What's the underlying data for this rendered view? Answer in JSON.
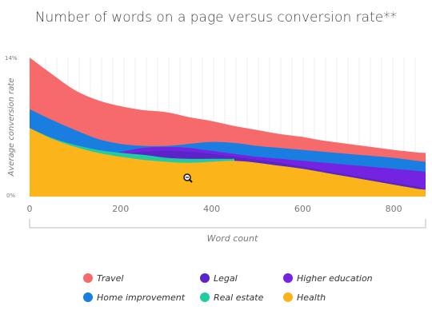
{
  "chart_data": {
    "type": "area",
    "title": "Number of words on a page versus conversion rate**",
    "xlabel": "Word count",
    "ylabel": "Average conversion rate",
    "xlim": [
      0,
      870
    ],
    "ylim": [
      0,
      14
    ],
    "x_ticks": [
      "0",
      "200",
      "400",
      "600",
      "800"
    ],
    "y_ticks": [
      "0%",
      "14%"
    ],
    "grid": "vertical",
    "legend_placement": "bottom",
    "x": [
      0,
      50,
      100,
      150,
      200,
      250,
      300,
      350,
      400,
      450,
      500,
      550,
      600,
      650,
      700,
      750,
      800,
      850,
      870
    ],
    "series": [
      {
        "name": "Travel",
        "color": "#f76a6b",
        "values": [
          14,
          12.3,
          10.7,
          9.7,
          9.1,
          8.7,
          8.5,
          8.0,
          7.6,
          7.1,
          6.7,
          6.3,
          6.0,
          5.6,
          5.3,
          5.0,
          4.7,
          4.45,
          4.4
        ]
      },
      {
        "name": "Home improvement",
        "color": "#1a7de0",
        "values": [
          8.8,
          7.7,
          6.7,
          5.8,
          5.3,
          5.1,
          5.1,
          5.3,
          5.5,
          5.4,
          5.1,
          4.9,
          4.7,
          4.5,
          4.3,
          4.1,
          3.9,
          3.6,
          3.5
        ]
      },
      {
        "name": "Higher education",
        "color": "#7423e0",
        "values": [
          null,
          null,
          null,
          4.0,
          4.5,
          4.9,
          5.0,
          4.9,
          4.6,
          4.3,
          4.0,
          3.8,
          3.6,
          3.4,
          3.2,
          3.0,
          2.8,
          2.6,
          2.5
        ]
      },
      {
        "name": "Legal",
        "color": "#5a24c8",
        "values": [
          null,
          null,
          null,
          4.1,
          4.3,
          4.5,
          4.6,
          4.5,
          4.3,
          4.0,
          3.7,
          3.4,
          3.0,
          2.6,
          2.2,
          1.8,
          1.4,
          1.0,
          0.7
        ]
      },
      {
        "name": "Real estate",
        "color": "#21cda0",
        "values": [
          6.9,
          5.9,
          5.2,
          4.7,
          4.4,
          4.2,
          3.9,
          3.8,
          3.8,
          3.8,
          null,
          null,
          null,
          null,
          null,
          null,
          null,
          null,
          null
        ]
      },
      {
        "name": "Health",
        "color": "#fbb41a",
        "values": [
          6.9,
          5.8,
          5.0,
          4.4,
          4.0,
          3.7,
          3.5,
          3.4,
          3.5,
          3.6,
          3.4,
          3.1,
          2.8,
          2.4,
          2.0,
          1.6,
          1.2,
          0.8,
          0.7
        ]
      }
    ],
    "legend": [
      {
        "label": "Travel",
        "color": "#f76a6b"
      },
      {
        "label": "Legal",
        "color": "#5a24c8"
      },
      {
        "label": "Higher education",
        "color": "#7423e0"
      },
      {
        "label": "Home improvement",
        "color": "#1a7de0"
      },
      {
        "label": "Real estate",
        "color": "#21cda0"
      },
      {
        "label": "Health",
        "color": "#fbb41a"
      }
    ]
  }
}
